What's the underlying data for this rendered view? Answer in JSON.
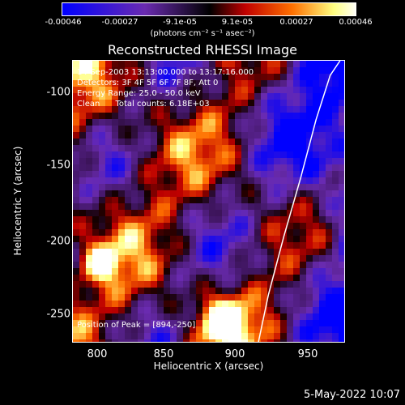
{
  "colorbar": {
    "ticks": [
      "-0.00046",
      "-0.00027",
      "-9.1e-05",
      "9.1e-05",
      "0.00027",
      "0.00046"
    ],
    "tick_values": [
      -0.00046,
      -0.00027,
      -9.1e-05,
      9.1e-05,
      0.00027,
      0.00046
    ],
    "range": [
      -0.00046,
      0.00046
    ],
    "units": "(photons cm⁻² s⁻¹ asec⁻²)",
    "colors": [
      "#0000ff",
      "#6a2bb0",
      "#000000",
      "#c00000",
      "#ff7000",
      "#ffff80",
      "#ffffff"
    ]
  },
  "chart_data": {
    "type": "heatmap",
    "title": "Reconstructed RHESSI Image",
    "xlabel": "Heliocentric X (arcsec)",
    "ylabel": "Heliocentric Y (arcsec)",
    "xlim": [
      782,
      975
    ],
    "ylim": [
      -272,
      -80
    ],
    "x_ticks": [
      800,
      850,
      900,
      950
    ],
    "y_ticks": [
      -100,
      -150,
      -200,
      -250
    ],
    "limb_line": {
      "x": [
        914,
        921,
        932,
        944,
        955,
        965,
        972
      ],
      "y": [
        -272,
        -240,
        -200,
        -160,
        -120,
        -90,
        -80
      ]
    },
    "annotations": [
      "14-Sep-2003 13:13:00.000 to 13:17:16.000",
      "Detectors: 3F 4F 5F 6F 7F 8F, Att 0",
      "Energy Range: 25.0 - 50.0 keV",
      "Clean      Total counts: 6.18E+03",
      "Position of Peak = [894,-250]"
    ],
    "peak": [
      894,
      -250
    ]
  },
  "footer_date": "5-May-2022 10:07"
}
